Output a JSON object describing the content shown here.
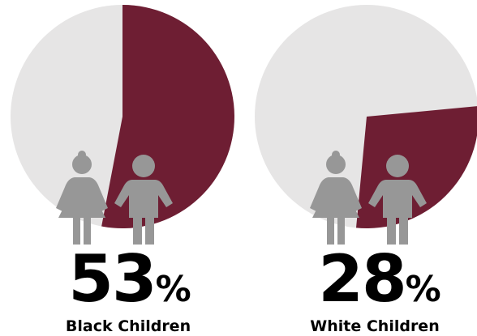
{
  "chart_data": [
    {
      "type": "pie",
      "categories": [
        "Black Children"
      ],
      "values": [
        53
      ],
      "value_label": "53",
      "unit": "%",
      "label": "Black Children",
      "colors": {
        "filled": "#6e1e33",
        "remainder": "#e6e5e5"
      },
      "icon": "girl-and-boy-icon"
    },
    {
      "type": "pie",
      "categories": [
        "White Children"
      ],
      "values": [
        28
      ],
      "value_label": "28",
      "unit": "%",
      "label": "White Children",
      "colors": {
        "filled": "#6e1e33",
        "remainder": "#e6e5e5"
      },
      "icon": "girl-and-boy-icon"
    }
  ],
  "colors": {
    "accent": "#6e1e33",
    "remainder": "#e6e5e5",
    "icon": "#979797",
    "text": "#000000"
  }
}
